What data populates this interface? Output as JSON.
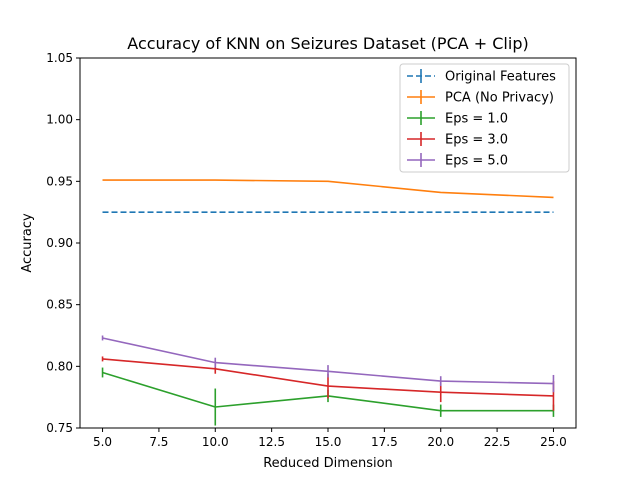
{
  "chart_data": {
    "type": "line",
    "title": "Accuracy of KNN on Seizures Dataset (PCA + Clip)",
    "xlabel": "Reduced Dimension",
    "ylabel": "Accuracy",
    "xlim": [
      4.0,
      26.0
    ],
    "ylim": [
      0.75,
      1.05
    ],
    "xticks": [
      5.0,
      7.5,
      10.0,
      12.5,
      15.0,
      17.5,
      20.0,
      22.5,
      25.0
    ],
    "xtick_labels": [
      "5.0",
      "7.5",
      "10.0",
      "12.5",
      "15.0",
      "17.5",
      "20.0",
      "22.5",
      "25.0"
    ],
    "yticks": [
      0.75,
      0.8,
      0.85,
      0.9,
      0.95,
      1.0,
      1.05
    ],
    "ytick_labels": [
      "0.75",
      "0.80",
      "0.85",
      "0.90",
      "0.95",
      "1.00",
      "1.05"
    ],
    "grid": false,
    "legend_position": "top-right",
    "series": [
      {
        "name": "Original Features",
        "color": "#1f77b4",
        "dashed": true,
        "x": [
          5,
          10,
          15,
          20,
          25
        ],
        "y": [
          0.925,
          0.925,
          0.925,
          0.925,
          0.925
        ],
        "err": [
          0,
          0,
          0,
          0,
          0
        ]
      },
      {
        "name": "PCA (No Privacy)",
        "color": "#ff7f0e",
        "dashed": false,
        "x": [
          5,
          10,
          15,
          20,
          25
        ],
        "y": [
          0.951,
          0.951,
          0.95,
          0.941,
          0.937
        ],
        "err": [
          0,
          0,
          0,
          0,
          0
        ]
      },
      {
        "name": "Eps = 1.0",
        "color": "#2ca02c",
        "dashed": false,
        "x": [
          5,
          10,
          15,
          20,
          25
        ],
        "y": [
          0.795,
          0.767,
          0.776,
          0.764,
          0.764
        ],
        "err": [
          0.004,
          0.015,
          0.005,
          0.005,
          0.005
        ]
      },
      {
        "name": "Eps = 3.0",
        "color": "#d62728",
        "dashed": false,
        "x": [
          5,
          10,
          15,
          20,
          25
        ],
        "y": [
          0.806,
          0.798,
          0.784,
          0.779,
          0.776
        ],
        "err": [
          0.002,
          0.004,
          0.01,
          0.008,
          0.012
        ]
      },
      {
        "name": "Eps = 5.0",
        "color": "#9467bd",
        "dashed": false,
        "x": [
          5,
          10,
          15,
          20,
          25
        ],
        "y": [
          0.823,
          0.803,
          0.796,
          0.788,
          0.786
        ],
        "err": [
          0.002,
          0.004,
          0.005,
          0.004,
          0.007
        ]
      }
    ]
  }
}
